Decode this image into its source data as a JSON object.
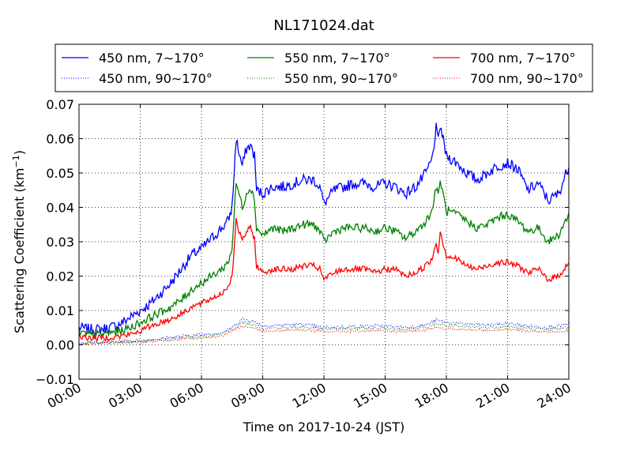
{
  "chart_data": {
    "type": "line",
    "title": "NL171024.dat",
    "xlabel": "Time on 2017-10-24 (JST)",
    "ylabel": "Scattering Coefficient (km",
    "ylabel_sup": "−1",
    "ylabel_close": ")",
    "xlim": [
      0,
      24
    ],
    "ylim": [
      -0.01,
      0.07
    ],
    "grid": true,
    "legend_position": "top",
    "x_ticks": [
      {
        "value": 0,
        "label": "00:00"
      },
      {
        "value": 3,
        "label": "03:00"
      },
      {
        "value": 6,
        "label": "06:00"
      },
      {
        "value": 9,
        "label": "09:00"
      },
      {
        "value": 12,
        "label": "12:00"
      },
      {
        "value": 15,
        "label": "15:00"
      },
      {
        "value": 18,
        "label": "18:00"
      },
      {
        "value": 21,
        "label": "21:00"
      },
      {
        "value": 24,
        "label": "24:00"
      }
    ],
    "y_ticks": [
      {
        "value": -0.01,
        "label": "−0.01"
      },
      {
        "value": 0.0,
        "label": "0.00"
      },
      {
        "value": 0.01,
        "label": "0.01"
      },
      {
        "value": 0.02,
        "label": "0.02"
      },
      {
        "value": 0.03,
        "label": "0.03"
      },
      {
        "value": 0.04,
        "label": "0.04"
      },
      {
        "value": 0.05,
        "label": "0.05"
      },
      {
        "value": 0.06,
        "label": "0.06"
      },
      {
        "value": 0.07,
        "label": "0.07"
      }
    ],
    "series": [
      {
        "name": "450 nm, 7∼170°",
        "color": "#0000ff",
        "style": "solid",
        "x": [
          0,
          0.5,
          1,
          1.5,
          2,
          2.5,
          3,
          3.5,
          4,
          4.5,
          5,
          5.5,
          6,
          6.5,
          7,
          7.3,
          7.5,
          7.6,
          7.7,
          7.8,
          8.0,
          8.2,
          8.4,
          8.6,
          8.7,
          9.0,
          9.5,
          10,
          10.5,
          11,
          11.5,
          11.8,
          12,
          12.5,
          13,
          13.5,
          14,
          14.5,
          15,
          15.5,
          16,
          16.5,
          17,
          17.3,
          17.5,
          17.6,
          17.7,
          18,
          18.5,
          19,
          19.5,
          20,
          20.5,
          21,
          21.5,
          22,
          22.5,
          23,
          23.5,
          24
        ],
        "y": [
          0.005,
          0.0045,
          0.0045,
          0.005,
          0.006,
          0.008,
          0.01,
          0.012,
          0.015,
          0.018,
          0.022,
          0.026,
          0.028,
          0.031,
          0.034,
          0.036,
          0.04,
          0.05,
          0.06,
          0.057,
          0.052,
          0.057,
          0.058,
          0.055,
          0.045,
          0.044,
          0.046,
          0.046,
          0.047,
          0.048,
          0.048,
          0.046,
          0.041,
          0.045,
          0.046,
          0.047,
          0.047,
          0.046,
          0.047,
          0.046,
          0.044,
          0.046,
          0.05,
          0.054,
          0.063,
          0.059,
          0.064,
          0.055,
          0.053,
          0.05,
          0.048,
          0.05,
          0.052,
          0.053,
          0.051,
          0.045,
          0.047,
          0.042,
          0.044,
          0.052
        ]
      },
      {
        "name": "450 nm, 90∼170°",
        "color": "#0000ff",
        "style": "dotted",
        "x": [
          0,
          1,
          2,
          3,
          4,
          5,
          6,
          7,
          7.5,
          8,
          8.5,
          9,
          10,
          11,
          12,
          13,
          14,
          15,
          16,
          17,
          17.5,
          18,
          19,
          20,
          21,
          22,
          23,
          24
        ],
        "y": [
          0.0005,
          0.0008,
          0.001,
          0.0012,
          0.0018,
          0.0025,
          0.003,
          0.0035,
          0.005,
          0.0075,
          0.007,
          0.0055,
          0.0058,
          0.006,
          0.005,
          0.0052,
          0.0055,
          0.0055,
          0.005,
          0.0058,
          0.0072,
          0.0065,
          0.006,
          0.0058,
          0.0062,
          0.0055,
          0.005,
          0.006
        ]
      },
      {
        "name": "550 nm, 7∼170°",
        "color": "#008000",
        "style": "solid",
        "x": [
          0,
          0.5,
          1,
          1.5,
          2,
          2.5,
          3,
          3.5,
          4,
          4.5,
          5,
          5.5,
          6,
          6.5,
          7,
          7.3,
          7.5,
          7.6,
          7.7,
          7.8,
          8.0,
          8.2,
          8.4,
          8.6,
          8.7,
          9.0,
          9.5,
          10,
          10.5,
          11,
          11.5,
          11.8,
          12,
          12.5,
          13,
          13.5,
          14,
          14.5,
          15,
          15.5,
          16,
          16.5,
          17,
          17.3,
          17.5,
          17.6,
          17.7,
          18,
          18.5,
          19,
          19.5,
          20,
          20.5,
          21,
          21.5,
          22,
          22.5,
          23,
          23.5,
          24
        ],
        "y": [
          0.0035,
          0.003,
          0.003,
          0.0035,
          0.004,
          0.005,
          0.0065,
          0.008,
          0.0095,
          0.011,
          0.013,
          0.016,
          0.018,
          0.02,
          0.022,
          0.024,
          0.028,
          0.038,
          0.047,
          0.045,
          0.04,
          0.044,
          0.046,
          0.042,
          0.034,
          0.032,
          0.034,
          0.033,
          0.034,
          0.035,
          0.035,
          0.033,
          0.03,
          0.033,
          0.034,
          0.034,
          0.034,
          0.033,
          0.034,
          0.033,
          0.031,
          0.033,
          0.036,
          0.039,
          0.046,
          0.043,
          0.048,
          0.039,
          0.038,
          0.036,
          0.034,
          0.035,
          0.037,
          0.038,
          0.036,
          0.033,
          0.034,
          0.03,
          0.032,
          0.038
        ]
      },
      {
        "name": "550 nm, 90∼170°",
        "color": "#008000",
        "style": "dotted",
        "x": [
          0,
          1,
          2,
          3,
          4,
          5,
          6,
          7,
          7.5,
          8,
          8.5,
          9,
          10,
          11,
          12,
          13,
          14,
          15,
          16,
          17,
          17.5,
          18,
          19,
          20,
          21,
          22,
          23,
          24
        ],
        "y": [
          0.0003,
          0.0006,
          0.0008,
          0.001,
          0.0015,
          0.002,
          0.0025,
          0.003,
          0.0045,
          0.0065,
          0.006,
          0.0048,
          0.005,
          0.0052,
          0.0045,
          0.0046,
          0.0048,
          0.0048,
          0.0045,
          0.005,
          0.0062,
          0.0055,
          0.0052,
          0.005,
          0.0053,
          0.0048,
          0.0044,
          0.005
        ]
      },
      {
        "name": "700 nm, 7∼170°",
        "color": "#ff0000",
        "style": "solid",
        "x": [
          0,
          0.5,
          1,
          1.5,
          2,
          2.5,
          3,
          3.5,
          4,
          4.5,
          5,
          5.5,
          6,
          6.5,
          7,
          7.3,
          7.5,
          7.6,
          7.7,
          7.8,
          8.0,
          8.2,
          8.4,
          8.6,
          8.7,
          9.0,
          9.5,
          10,
          10.5,
          11,
          11.5,
          11.8,
          12,
          12.5,
          13,
          13.5,
          14,
          14.5,
          15,
          15.5,
          16,
          16.5,
          17,
          17.3,
          17.5,
          17.6,
          17.7,
          18,
          18.5,
          19,
          19.5,
          20,
          20.5,
          21,
          21.5,
          22,
          22.5,
          23,
          23.5,
          24
        ],
        "y": [
          0.0025,
          0.002,
          0.002,
          0.0022,
          0.0025,
          0.003,
          0.004,
          0.0055,
          0.0065,
          0.0075,
          0.009,
          0.011,
          0.012,
          0.0135,
          0.015,
          0.017,
          0.02,
          0.028,
          0.036,
          0.034,
          0.03,
          0.033,
          0.034,
          0.031,
          0.023,
          0.021,
          0.022,
          0.022,
          0.022,
          0.023,
          0.023,
          0.022,
          0.019,
          0.021,
          0.022,
          0.022,
          0.022,
          0.021,
          0.022,
          0.022,
          0.02,
          0.021,
          0.023,
          0.025,
          0.03,
          0.027,
          0.033,
          0.026,
          0.025,
          0.023,
          0.022,
          0.023,
          0.024,
          0.024,
          0.023,
          0.021,
          0.022,
          0.019,
          0.02,
          0.024
        ]
      },
      {
        "name": "700 nm, 90∼170°",
        "color": "#ff0000",
        "style": "dotted",
        "x": [
          0,
          1,
          2,
          3,
          4,
          5,
          6,
          7,
          7.5,
          8,
          8.5,
          9,
          10,
          11,
          12,
          13,
          14,
          15,
          16,
          17,
          17.5,
          18,
          19,
          20,
          21,
          22,
          23,
          24
        ],
        "y": [
          0.0002,
          0.0004,
          0.0006,
          0.0008,
          0.0012,
          0.0016,
          0.002,
          0.0025,
          0.0038,
          0.0055,
          0.005,
          0.004,
          0.0042,
          0.0044,
          0.0038,
          0.0039,
          0.004,
          0.004,
          0.0038,
          0.0042,
          0.0052,
          0.0046,
          0.0044,
          0.0042,
          0.0045,
          0.004,
          0.0037,
          0.0042
        ]
      }
    ]
  }
}
